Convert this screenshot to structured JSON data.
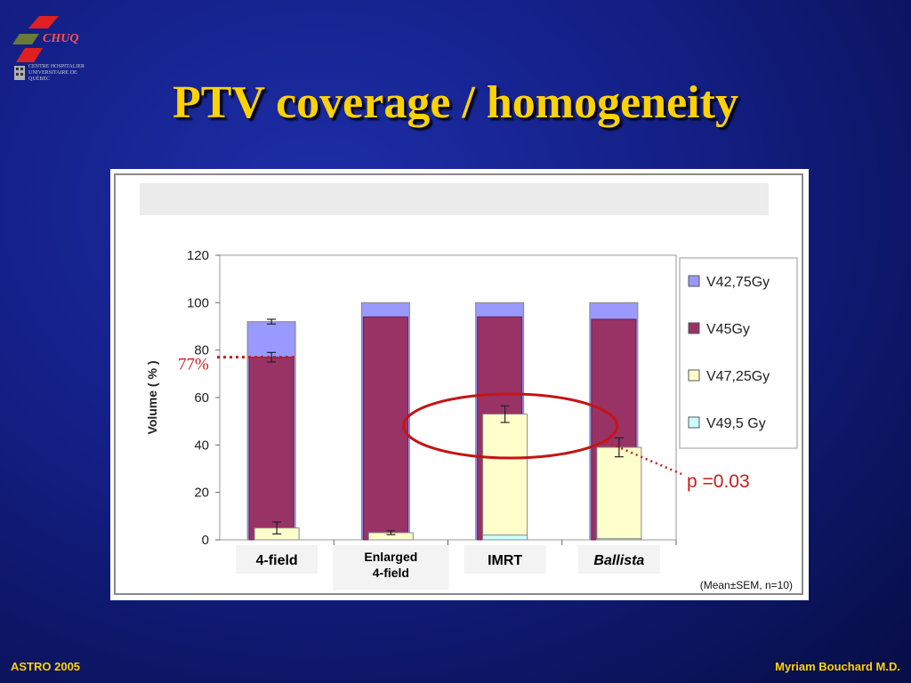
{
  "slide": {
    "title": "PTV coverage / homogeneity",
    "logo_text": "CHUQ",
    "logo_subtext": "CENTRE HOSPITALIER UNIVERSITAIRE DE QUÉBEC",
    "footer_left": "ASTRO 2005",
    "footer_right": "Myriam Bouchard M.D."
  },
  "chart_data": {
    "type": "bar",
    "categories": [
      "4-field",
      "Enlarged 4-field",
      "IMRT",
      "Ballista"
    ],
    "category_italic": [
      false,
      false,
      false,
      true
    ],
    "ylabel": "Volume ( % )",
    "ylim": [
      0,
      120
    ],
    "yticks": [
      0,
      20,
      40,
      60,
      80,
      100,
      120
    ],
    "series": [
      {
        "name": "V42,75Gy",
        "color": "#9999ff",
        "values": [
          92,
          100,
          100,
          100
        ],
        "errors": [
          1,
          0,
          0,
          0
        ]
      },
      {
        "name": "V45Gy",
        "color": "#993366",
        "values": [
          77,
          94,
          94,
          93
        ],
        "errors": [
          2,
          0,
          0,
          0
        ]
      },
      {
        "name": "V47,25Gy",
        "color": "#ffffcc",
        "values": [
          5,
          3,
          53,
          39
        ],
        "errors": [
          2.5,
          0.8,
          3.5,
          4
        ]
      },
      {
        "name": "V49,5 Gy",
        "color": "#ccffff",
        "values": [
          0,
          0,
          2,
          0.5
        ],
        "errors": [
          0,
          0,
          0,
          0
        ]
      }
    ],
    "legend_position": "right",
    "grid": false,
    "annotations": {
      "percent_label": "77%",
      "p_value": "p =0.03",
      "note": "(Mean±SEM, n=10)"
    }
  }
}
